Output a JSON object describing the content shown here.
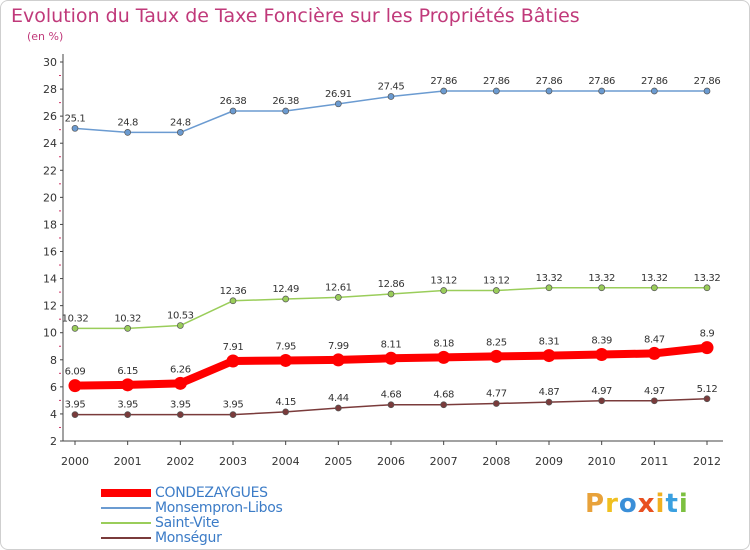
{
  "title": "Evolution du Taux de Taxe Foncière sur les Propriétés Bâties",
  "unit_label": "(en %)",
  "logo": {
    "letters": [
      "P",
      "r",
      "o",
      "x",
      "i",
      "t",
      "i"
    ],
    "colors": [
      "#e8a23a",
      "#f0c020",
      "#3a8fd8",
      "#e85020",
      "#f0b020",
      "#3aa0e0",
      "#7cc040"
    ]
  },
  "chart_data": {
    "type": "line",
    "title": "Evolution du Taux de Taxe Foncière sur les Propriétés Bâties",
    "ylabel": "(en %)",
    "xlabel": "",
    "x": [
      "2000",
      "2001",
      "2002",
      "2003",
      "2004",
      "2005",
      "2006",
      "2007",
      "2008",
      "2009",
      "2010",
      "2011",
      "2012"
    ],
    "yticks": [
      2,
      4,
      6,
      8,
      10,
      12,
      14,
      16,
      18,
      20,
      22,
      24,
      26,
      28,
      30
    ],
    "ylim": [
      2,
      30
    ],
    "grid": false,
    "legend_position": "bottom-left",
    "series": [
      {
        "name": "CONDEZAYGUES",
        "color": "#ff0000",
        "emphasis": true,
        "values": [
          6.09,
          6.15,
          6.26,
          7.91,
          7.95,
          7.99,
          8.11,
          8.18,
          8.25,
          8.31,
          8.39,
          8.47,
          8.9
        ],
        "labels": [
          "6.09",
          "6.15",
          "6.26",
          "7.91",
          "7.95",
          "7.99",
          "8.11",
          "8.18",
          "8.25",
          "8.31",
          "8.39",
          "8.47",
          "8.9"
        ]
      },
      {
        "name": "Monsempron-Libos",
        "color": "#6b9bd1",
        "values": [
          25.1,
          24.8,
          24.8,
          26.38,
          26.38,
          26.91,
          27.45,
          27.86,
          27.86,
          27.86,
          27.86,
          27.86,
          27.86
        ],
        "labels": [
          "25.1",
          "24.8",
          "24.8",
          "26.38",
          "26.38",
          "26.91",
          "27.45",
          "27.86",
          "27.86",
          "27.86",
          "27.86",
          "27.86",
          "27.86"
        ]
      },
      {
        "name": "Saint-Vite",
        "color": "#9acd5a",
        "values": [
          10.32,
          10.32,
          10.53,
          12.36,
          12.49,
          12.61,
          12.86,
          13.12,
          13.12,
          13.32,
          13.32,
          13.32,
          13.32
        ],
        "labels": [
          "10.32",
          "10.32",
          "10.53",
          "12.36",
          "12.49",
          "12.61",
          "12.86",
          "13.12",
          "13.12",
          "13.32",
          "13.32",
          "13.32",
          "13.32"
        ]
      },
      {
        "name": "Monségur",
        "color": "#7a3b3b",
        "values": [
          3.95,
          3.95,
          3.95,
          3.95,
          4.15,
          4.44,
          4.68,
          4.68,
          4.77,
          4.87,
          4.97,
          4.97,
          5.12
        ],
        "labels": [
          "3.95",
          "3.95",
          "3.95",
          "3.95",
          "4.15",
          "4.44",
          "4.68",
          "4.68",
          "4.77",
          "4.87",
          "4.97",
          "4.97",
          "5.12"
        ]
      }
    ]
  }
}
